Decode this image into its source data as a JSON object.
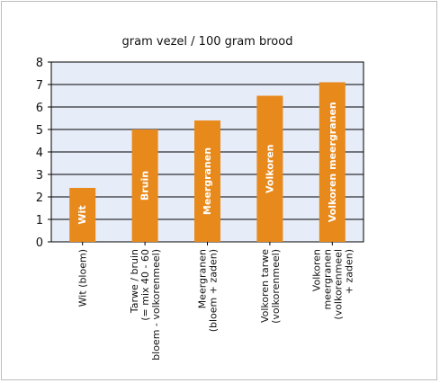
{
  "chart_data": {
    "type": "bar",
    "title": "gram vezel / 100 gram brood",
    "xlabel": "",
    "ylabel": "",
    "ylim": [
      0,
      8
    ],
    "yticks": [
      "0",
      "1",
      "2",
      "3",
      "4",
      "5",
      "6",
      "7",
      "8"
    ],
    "grid": true,
    "categories": [
      [
        "Wit (bloem)"
      ],
      [
        "Tarwe / bruin",
        "(= mix 40 - 60",
        "bloem - volkorenmeel)"
      ],
      [
        "Meergranen",
        "(bloem + zaden)"
      ],
      [
        "Volkoren tarwe",
        "(volkorenmeel)"
      ],
      [
        "Volkoren",
        "meergranen",
        "(volkorenmeel",
        "+ zaden)"
      ]
    ],
    "bar_labels": [
      "Wit",
      "Bruin",
      "Meergranen",
      "Volkoren",
      "Volkoren meergranen"
    ],
    "values": [
      2.4,
      5.0,
      5.4,
      6.5,
      7.1
    ],
    "colors": {
      "bar": "#e8891b",
      "plot_background": "#e6ecf8",
      "bar_label_text": "#ffffff"
    }
  }
}
